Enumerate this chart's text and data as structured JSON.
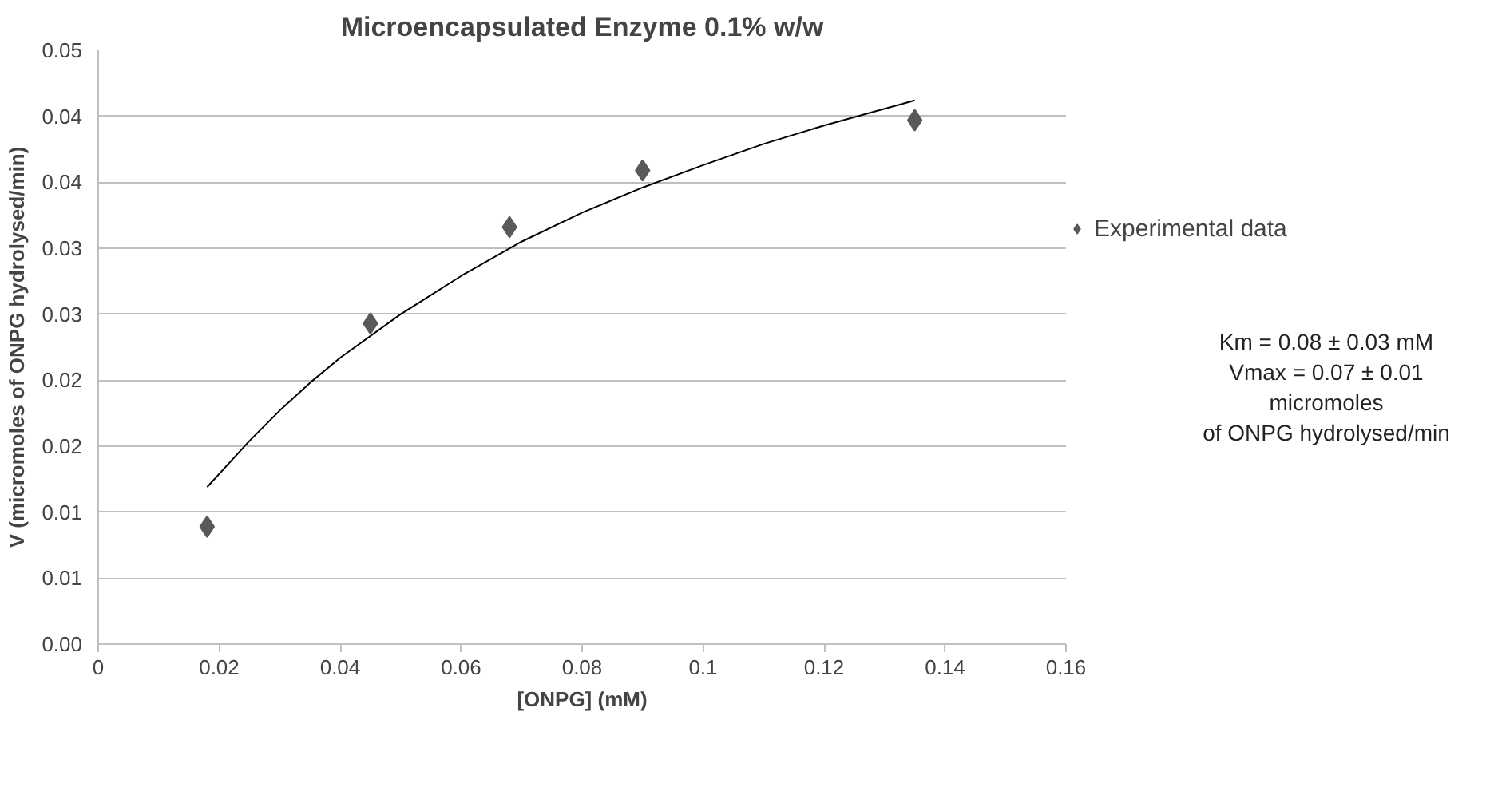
{
  "chart_data": {
    "type": "scatter",
    "title": "Microencapsulated Enzyme 0.1% w/w",
    "xlabel": "[ONPG] (mM)",
    "ylabel": "V (micromoles of ONPG hydrolysed/min)",
    "series": [
      {
        "name": "Experimental data",
        "type": "scatter",
        "color": "#595959",
        "marker": "diamond",
        "x": [
          0.018,
          0.045,
          0.068,
          0.09,
          0.135
        ],
        "values": [
          0.0089,
          0.0243,
          0.0316,
          0.0359,
          0.0397
        ]
      },
      {
        "type": "line",
        "color": "#000000",
        "line_style": "solid",
        "x": [
          0.018,
          0.025,
          0.03,
          0.035,
          0.04,
          0.05,
          0.06,
          0.07,
          0.08,
          0.09,
          0.1,
          0.11,
          0.12,
          0.135
        ],
        "values": [
          0.0119,
          0.0154,
          0.0177,
          0.0198,
          0.0217,
          0.025,
          0.0279,
          0.0305,
          0.0327,
          0.0346,
          0.0363,
          0.0379,
          0.0393,
          0.0412
        ]
      }
    ],
    "xlim": [
      0,
      0.16
    ],
    "xticks": [
      0,
      0.02,
      0.04,
      0.06,
      0.08,
      0.1,
      0.12,
      0.14,
      0.16
    ],
    "ylim": [
      0,
      0.045
    ],
    "yticks": [
      {
        "value": 0,
        "label": "0.00"
      },
      {
        "value": 0.005,
        "label": "0.01"
      },
      {
        "value": 0.01,
        "label": "0.01"
      },
      {
        "value": 0.015,
        "label": "0.02"
      },
      {
        "value": 0.02,
        "label": "0.02"
      },
      {
        "value": 0.025,
        "label": "0.03"
      },
      {
        "value": 0.03,
        "label": "0.03"
      },
      {
        "value": 0.035,
        "label": "0.04"
      },
      {
        "value": 0.04,
        "label": "0.04"
      },
      {
        "value": 0.045,
        "label": "0.05"
      }
    ],
    "grid": "y",
    "legend": "right",
    "annotations": [
      "Km = 0.08 ± 0.03 mM\nVmax = 0.07 ± 0.01\nmicromoles\nof ONPG hydrolysed/min"
    ]
  }
}
